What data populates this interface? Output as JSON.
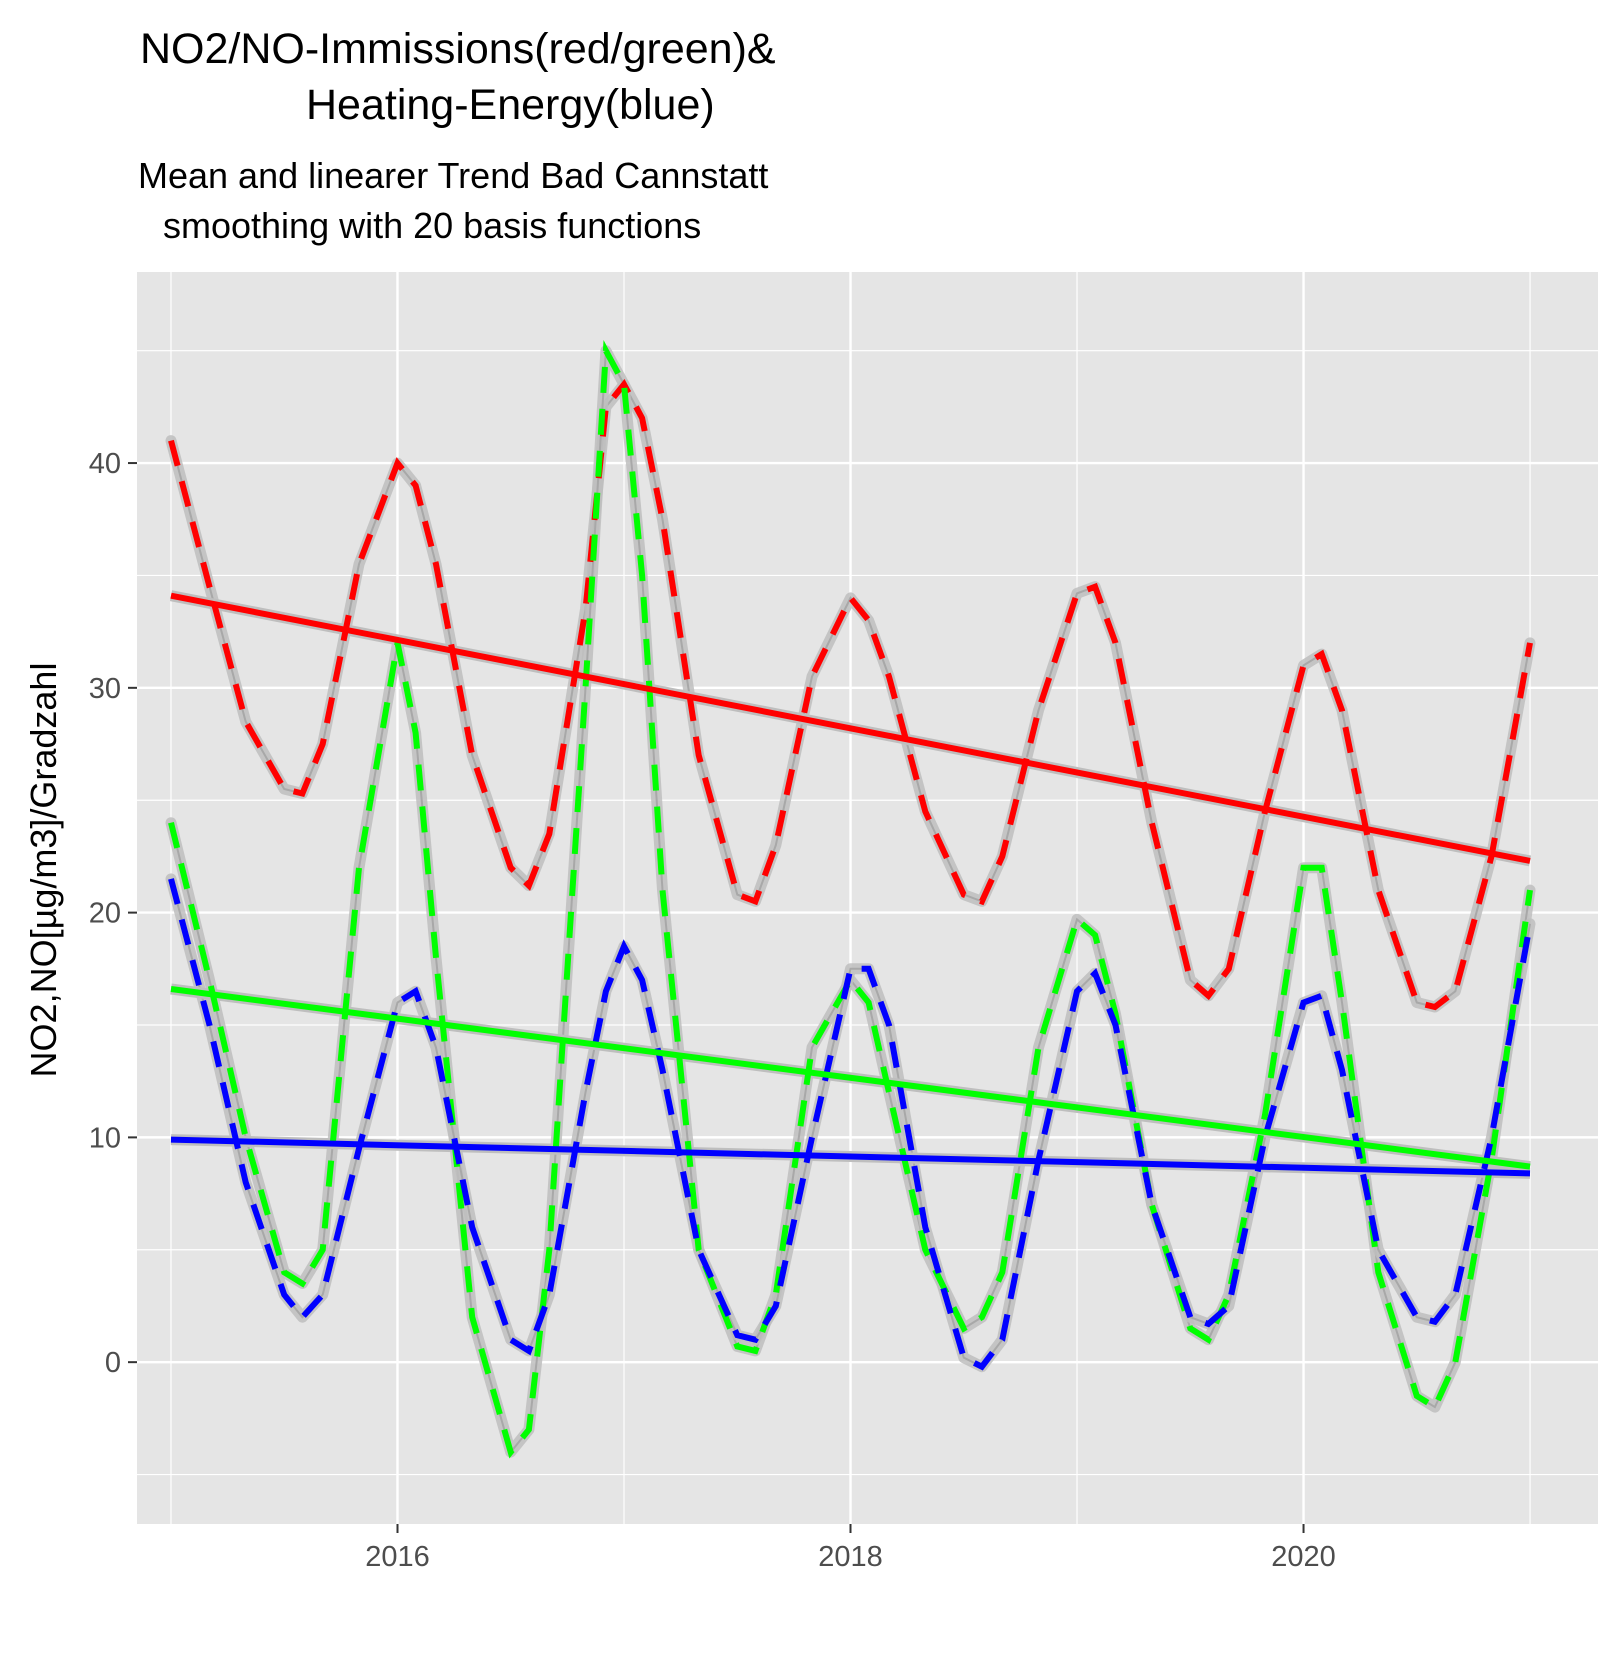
{
  "chart_data": {
    "type": "line",
    "title_lines": [
      "NO2/NO-Immissions(red/green)&",
      "Heating-Energy(blue)"
    ],
    "subtitle_lines": [
      "Mean and linearer Trend Bad Cannstatt",
      "smoothing with 20 basis functions"
    ],
    "xlabel": "",
    "ylabel": "NO2,NO[µg/m3]/Gradzahl",
    "xlim": [
      2014.85,
      2021.3
    ],
    "ylim": [
      -7.2,
      48.5
    ],
    "x_ticks": [
      2016,
      2018,
      2020
    ],
    "x_tick_labels": [
      "2016",
      "2018",
      "2020"
    ],
    "y_ticks": [
      0,
      10,
      20,
      30,
      40
    ],
    "y_tick_labels": [
      "0",
      "10",
      "20",
      "30",
      "40"
    ],
    "grid": true,
    "colors": {
      "panel": "#e5e5e5",
      "grid": "#ffffff",
      "band": "#bebebe",
      "no2": "#ff0000",
      "no": "#00ff00",
      "heating": "#0000ff"
    },
    "series": [
      {
        "color": "red",
        "style": "dashed",
        "x": [
          2015.0,
          2015.17,
          2015.33,
          2015.5,
          2015.58,
          2015.67,
          2015.83,
          2016.0,
          2016.08,
          2016.17,
          2016.33,
          2016.5,
          2016.58,
          2016.67,
          2016.83,
          2016.92,
          2017.0,
          2017.08,
          2017.17,
          2017.33,
          2017.5,
          2017.58,
          2017.67,
          2017.83,
          2018.0,
          2018.08,
          2018.17,
          2018.33,
          2018.5,
          2018.58,
          2018.67,
          2018.83,
          2019.0,
          2019.08,
          2019.17,
          2019.33,
          2019.5,
          2019.58,
          2019.67,
          2019.83,
          2020.0,
          2020.08,
          2020.17,
          2020.33,
          2020.5,
          2020.58,
          2020.67,
          2020.83,
          2021.0
        ],
        "y": [
          41.0,
          34.5,
          28.5,
          25.5,
          25.3,
          27.5,
          35.5,
          40.0,
          39.0,
          35.5,
          27.0,
          22.0,
          21.2,
          23.5,
          33.5,
          42.5,
          43.5,
          42.0,
          37.5,
          27.0,
          20.8,
          20.5,
          23.0,
          30.5,
          34.0,
          33.0,
          30.5,
          24.5,
          20.8,
          20.5,
          22.5,
          29.0,
          34.2,
          34.5,
          32.0,
          24.0,
          17.0,
          16.3,
          17.5,
          24.5,
          31.0,
          31.5,
          29.0,
          21.0,
          16.0,
          15.8,
          16.5,
          22.5,
          32.0
        ]
      },
      {
        "color": "green",
        "style": "dashed",
        "x": [
          2015.0,
          2015.17,
          2015.33,
          2015.5,
          2015.58,
          2015.67,
          2015.83,
          2016.0,
          2016.08,
          2016.17,
          2016.33,
          2016.5,
          2016.58,
          2016.67,
          2016.83,
          2016.92,
          2017.0,
          2017.08,
          2017.17,
          2017.33,
          2017.5,
          2017.58,
          2017.67,
          2017.83,
          2018.0,
          2018.08,
          2018.17,
          2018.33,
          2018.5,
          2018.58,
          2018.67,
          2018.83,
          2019.0,
          2019.08,
          2019.17,
          2019.33,
          2019.5,
          2019.58,
          2019.67,
          2019.83,
          2020.0,
          2020.08,
          2020.17,
          2020.33,
          2020.5,
          2020.58,
          2020.67,
          2020.83,
          2021.0
        ],
        "y": [
          24.0,
          17.0,
          10.0,
          4.0,
          3.5,
          5.0,
          22.0,
          32.0,
          28.0,
          18.0,
          2.0,
          -4.0,
          -3.0,
          5.0,
          30.0,
          45.0,
          43.5,
          35.0,
          21.0,
          5.0,
          0.7,
          0.5,
          3.0,
          14.0,
          17.0,
          16.0,
          12.0,
          5.0,
          1.5,
          2.0,
          4.0,
          14.0,
          19.7,
          19.0,
          15.5,
          7.0,
          1.5,
          1.0,
          3.0,
          11.0,
          22.0,
          22.0,
          16.0,
          4.0,
          -1.5,
          -2.0,
          0.0,
          9.0,
          21.0
        ]
      },
      {
        "color": "blue",
        "style": "dashed",
        "x": [
          2015.0,
          2015.17,
          2015.33,
          2015.5,
          2015.58,
          2015.67,
          2015.83,
          2016.0,
          2016.08,
          2016.17,
          2016.33,
          2016.5,
          2016.58,
          2016.67,
          2016.83,
          2016.92,
          2017.0,
          2017.08,
          2017.17,
          2017.33,
          2017.5,
          2017.58,
          2017.67,
          2017.83,
          2018.0,
          2018.08,
          2018.17,
          2018.33,
          2018.5,
          2018.58,
          2018.67,
          2018.83,
          2019.0,
          2019.08,
          2019.17,
          2019.33,
          2019.5,
          2019.58,
          2019.67,
          2019.83,
          2020.0,
          2020.08,
          2020.17,
          2020.33,
          2020.5,
          2020.58,
          2020.67,
          2020.83,
          2021.0
        ],
        "y": [
          21.5,
          15.0,
          8.0,
          3.0,
          2.0,
          3.0,
          9.5,
          16.0,
          16.5,
          14.0,
          6.0,
          1.0,
          0.5,
          3.0,
          12.0,
          16.5,
          18.5,
          17.0,
          13.0,
          5.0,
          1.2,
          1.0,
          2.5,
          10.0,
          17.5,
          17.5,
          15.0,
          6.0,
          0.2,
          -0.2,
          1.0,
          9.0,
          16.5,
          17.3,
          15.0,
          7.0,
          2.0,
          1.7,
          2.5,
          10.0,
          16.0,
          16.3,
          13.0,
          5.0,
          2.0,
          1.8,
          3.0,
          10.0,
          19.5
        ]
      },
      {
        "color": "red",
        "style": "trend",
        "x": [
          2015.0,
          2021.0
        ],
        "y": [
          34.1,
          22.3
        ]
      },
      {
        "color": "green",
        "style": "trend",
        "x": [
          2015.0,
          2021.0
        ],
        "y": [
          16.6,
          8.7
        ]
      },
      {
        "color": "blue",
        "style": "trend",
        "x": [
          2015.0,
          2021.0
        ],
        "y": [
          9.9,
          8.4
        ]
      }
    ]
  }
}
